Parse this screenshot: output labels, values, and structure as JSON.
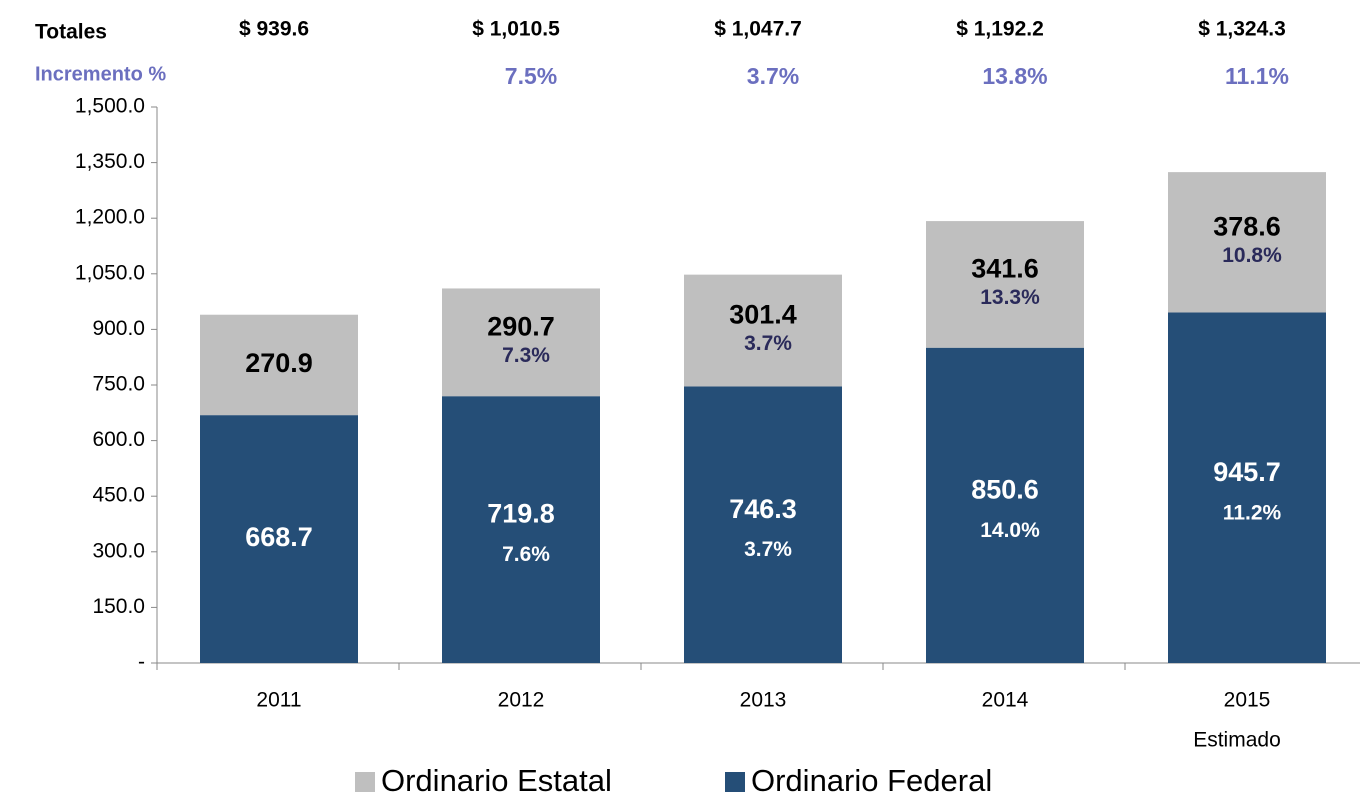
{
  "chart_data": {
    "type": "stacked_bar",
    "categories": [
      "2011",
      "2012",
      "2013",
      "2014",
      "2015"
    ],
    "category_note": "Estimado",
    "series": [
      {
        "name": "Ordinario Estatal",
        "color": "#bfbfbf",
        "values": [
          270.9,
          290.7,
          301.4,
          341.6,
          378.6
        ],
        "growth_labels": [
          null,
          "7.3%",
          "3.7%",
          "13.3%",
          "10.8%"
        ]
      },
      {
        "name": "Ordinario Federal",
        "color": "#254e77",
        "values": [
          668.7,
          719.8,
          746.3,
          850.6,
          945.7
        ],
        "growth_labels": [
          null,
          "7.6%",
          "3.7%",
          "14.0%",
          "11.2%"
        ]
      }
    ],
    "totals_title": "Totales",
    "totals": [
      939.6,
      1010.5,
      1047.7,
      1192.2,
      1324.3
    ],
    "totals_labels": [
      "$ 939.6",
      "$ 1,010.5",
      "$ 1,047.7",
      "$ 1,192.2",
      "$ 1,324.3"
    ],
    "increment_title": "Incremento %",
    "increment_labels": [
      null,
      "7.5%",
      "3.7%",
      "13.8%",
      "11.1%"
    ],
    "ylim": [
      0,
      1500
    ],
    "yticks": [
      {
        "value": 0,
        "label": "-"
      },
      {
        "value": 150,
        "label": "150.0"
      },
      {
        "value": 300,
        "label": "300.0"
      },
      {
        "value": 450,
        "label": "450.0"
      },
      {
        "value": 600,
        "label": "600.0"
      },
      {
        "value": 750,
        "label": "750.0"
      },
      {
        "value": 900,
        "label": "900.0"
      },
      {
        "value": 1050,
        "label": "1,050.0"
      },
      {
        "value": 1200,
        "label": "1,200.0"
      },
      {
        "value": 1350,
        "label": "1,350.0"
      },
      {
        "value": 1500,
        "label": "1,500.0"
      }
    ],
    "legend": "bottom"
  }
}
